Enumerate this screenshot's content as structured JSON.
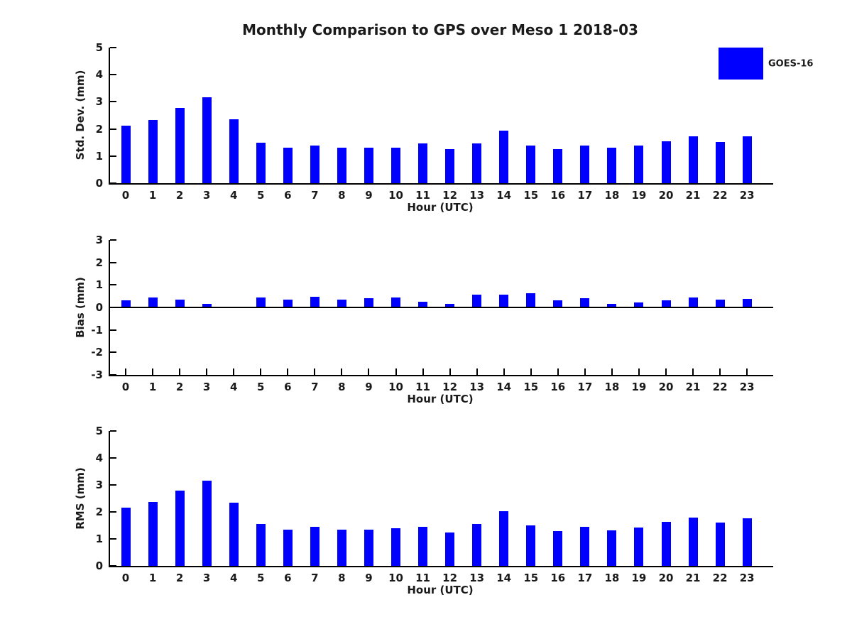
{
  "title": "Monthly Comparison to GPS over Meso 1 2018-03",
  "legend": {
    "label": "GOES-16",
    "color": "#0000ff",
    "position": "upper-right"
  },
  "chart_data": [
    {
      "type": "bar",
      "name": "std-dev-subplot",
      "title": "",
      "ylabel": "Std. Dev. (mm)",
      "xlabel": "Hour (UTC)",
      "ylim": [
        0,
        5
      ],
      "yticks": [
        0,
        1,
        2,
        3,
        4,
        5
      ],
      "grid": false,
      "categories": [
        "0",
        "1",
        "2",
        "3",
        "4",
        "5",
        "6",
        "7",
        "8",
        "9",
        "10",
        "11",
        "12",
        "13",
        "14",
        "15",
        "16",
        "17",
        "18",
        "19",
        "20",
        "21",
        "22",
        "23"
      ],
      "series": [
        {
          "name": "GOES-16",
          "color": "#0000ff",
          "values": [
            2.13,
            2.34,
            2.78,
            3.17,
            2.35,
            1.49,
            1.3,
            1.4,
            1.32,
            1.3,
            1.32,
            1.46,
            1.25,
            1.47,
            1.93,
            1.38,
            1.26,
            1.4,
            1.3,
            1.4,
            1.55,
            1.74,
            1.53,
            1.73
          ]
        }
      ]
    },
    {
      "type": "bar",
      "name": "bias-subplot",
      "title": "",
      "ylabel": "Bias (mm)",
      "xlabel": "Hour (UTC)",
      "ylim": [
        -3,
        3
      ],
      "yticks": [
        -3,
        -2,
        -1,
        0,
        1,
        2,
        3
      ],
      "grid": false,
      "categories": [
        "0",
        "1",
        "2",
        "3",
        "4",
        "5",
        "6",
        "7",
        "8",
        "9",
        "10",
        "11",
        "12",
        "13",
        "14",
        "15",
        "16",
        "17",
        "18",
        "19",
        "20",
        "21",
        "22",
        "23"
      ],
      "series": [
        {
          "name": "GOES-16",
          "color": "#0000ff",
          "values": [
            0.31,
            0.43,
            0.34,
            0.15,
            0.04,
            0.43,
            0.36,
            0.46,
            0.34,
            0.41,
            0.43,
            0.24,
            0.15,
            0.57,
            0.57,
            0.62,
            0.31,
            0.42,
            0.17,
            0.21,
            0.31,
            0.45,
            0.36,
            0.37
          ]
        }
      ]
    },
    {
      "type": "bar",
      "name": "rms-subplot",
      "title": "",
      "ylabel": "RMS (mm)",
      "xlabel": "Hour (UTC)",
      "ylim": [
        0,
        5
      ],
      "yticks": [
        0,
        1,
        2,
        3,
        4,
        5
      ],
      "grid": false,
      "categories": [
        "0",
        "1",
        "2",
        "3",
        "4",
        "5",
        "6",
        "7",
        "8",
        "9",
        "10",
        "11",
        "12",
        "13",
        "14",
        "15",
        "16",
        "17",
        "18",
        "19",
        "20",
        "21",
        "22",
        "23"
      ],
      "series": [
        {
          "name": "GOES-16",
          "color": "#0000ff",
          "values": [
            2.15,
            2.37,
            2.79,
            3.15,
            2.35,
            1.55,
            1.33,
            1.45,
            1.35,
            1.35,
            1.39,
            1.46,
            1.25,
            1.56,
            2.02,
            1.51,
            1.3,
            1.45,
            1.32,
            1.43,
            1.62,
            1.79,
            1.6,
            1.77
          ]
        }
      ]
    }
  ]
}
